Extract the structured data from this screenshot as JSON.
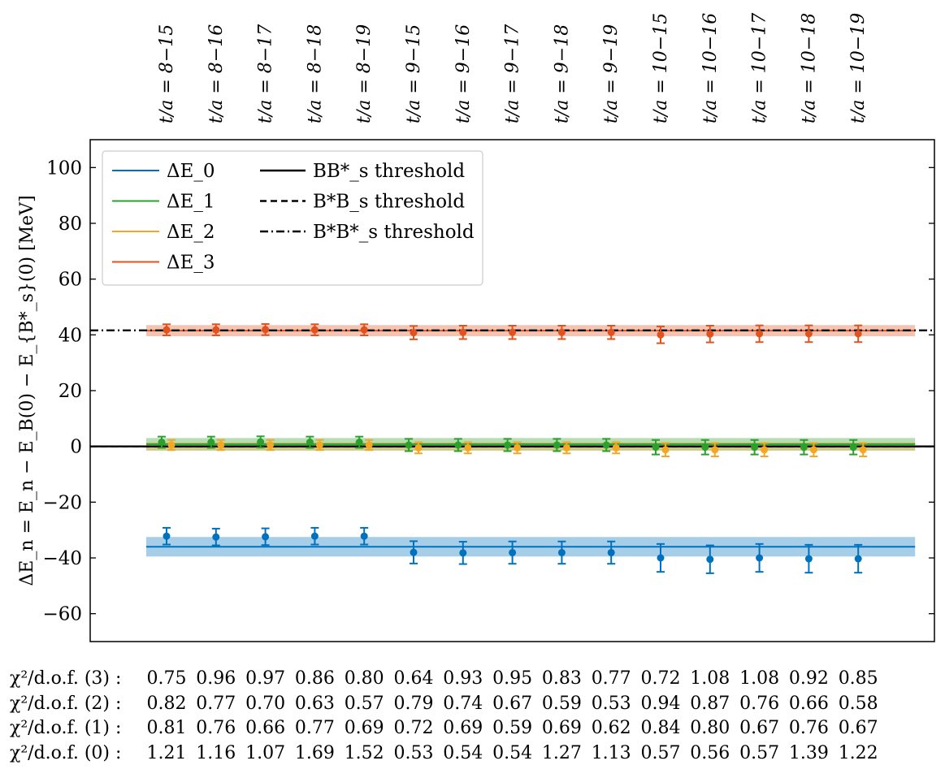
{
  "chart_data": {
    "type": "scatter",
    "ylabel": "ΔE_n = E_n − E_B(0) − E_{B*_s}(0) [MeV]",
    "ylim": [
      -70,
      110
    ],
    "yticks": [
      100,
      80,
      60,
      40,
      20,
      0,
      -20,
      -40,
      -60
    ],
    "ytick_labels": [
      "100",
      "80",
      "60",
      "40",
      "20",
      "0",
      "−20",
      "−40",
      "−60"
    ],
    "categories": [
      "t/a = 8−15",
      "t/a = 8−16",
      "t/a = 8−17",
      "t/a = 8−18",
      "t/a = 8−19",
      "t/a = 9−15",
      "t/a = 9−16",
      "t/a = 9−17",
      "t/a = 9−18",
      "t/a = 9−19",
      "t/a = 10−15",
      "t/a = 10−16",
      "t/a = 10−17",
      "t/a = 10−18",
      "t/a = 10−19"
    ],
    "legend_position": "top-left",
    "series": [
      {
        "name": "ΔE_0",
        "color": "#0072bd",
        "values": [
          -32.2,
          -32.5,
          -32.4,
          -32.2,
          -32.2,
          -38.0,
          -38.2,
          -38.1,
          -38.1,
          -38.1,
          -40.0,
          -40.5,
          -40.0,
          -40.3,
          -40.3
        ],
        "errors": [
          3.0,
          3.0,
          3.0,
          3.0,
          3.0,
          4.0,
          4.0,
          4.0,
          4.0,
          4.0,
          5.0,
          5.0,
          5.0,
          5.0,
          5.0
        ],
        "fit": -36.0,
        "band": [
          -39.5,
          -32.5
        ]
      },
      {
        "name": "ΔE_1",
        "color": "#2ca02c",
        "values": [
          1.5,
          1.5,
          1.6,
          1.5,
          1.5,
          0.5,
          0.5,
          0.5,
          0.5,
          0.5,
          -0.3,
          -0.3,
          -0.3,
          -0.3,
          -0.3
        ],
        "errors": [
          2.0,
          2.0,
          2.0,
          2.0,
          2.0,
          2.2,
          2.2,
          2.2,
          2.2,
          2.2,
          2.6,
          2.6,
          2.6,
          2.6,
          2.6
        ],
        "fit": 0.8,
        "band": [
          -1.5,
          3.0
        ]
      },
      {
        "name": "ΔE_2",
        "color": "#f5a623",
        "values": [
          0.5,
          0.5,
          0.5,
          0.5,
          0.5,
          -0.5,
          -0.5,
          -0.5,
          -0.5,
          -0.5,
          -1.2,
          -1.2,
          -1.2,
          -1.2,
          -1.2
        ],
        "errors": [
          1.8,
          1.8,
          1.8,
          1.8,
          1.8,
          2.0,
          2.0,
          2.0,
          2.0,
          2.0,
          2.4,
          2.4,
          2.4,
          2.4,
          2.4
        ],
        "fit": 0.0,
        "band": [
          -1.5,
          1.5
        ]
      },
      {
        "name": "ΔE_3",
        "color": "#e0531f",
        "values": [
          41.8,
          41.8,
          41.9,
          41.8,
          41.8,
          40.8,
          40.9,
          40.9,
          40.9,
          40.9,
          40.0,
          40.3,
          40.4,
          40.4,
          40.4
        ],
        "errors": [
          2.0,
          2.0,
          2.0,
          2.0,
          2.0,
          2.4,
          2.4,
          2.4,
          2.4,
          2.4,
          3.0,
          3.0,
          3.0,
          3.0,
          3.0
        ],
        "fit": 41.5,
        "band": [
          39.5,
          43.5
        ]
      }
    ],
    "thresholds": [
      {
        "name": "BB*_s threshold",
        "style": "solid",
        "value": 0.0
      },
      {
        "name": "B*B_s threshold",
        "style": "dashed",
        "value": 0.0
      },
      {
        "name": "B*B*_s threshold",
        "style": "dashdot",
        "value": 41.6
      }
    ],
    "chi2_table": {
      "rows": [
        {
          "label": "χ²/d.o.f. (3) :",
          "values": [
            "0.75",
            "0.96",
            "0.97",
            "0.86",
            "0.80",
            "0.64",
            "0.93",
            "0.95",
            "0.83",
            "0.77",
            "0.72",
            "1.08",
            "1.08",
            "0.92",
            "0.85"
          ]
        },
        {
          "label": "χ²/d.o.f. (2) :",
          "values": [
            "0.82",
            "0.77",
            "0.70",
            "0.63",
            "0.57",
            "0.79",
            "0.74",
            "0.67",
            "0.59",
            "0.53",
            "0.94",
            "0.87",
            "0.76",
            "0.66",
            "0.58"
          ]
        },
        {
          "label": "χ²/d.o.f. (1) :",
          "values": [
            "0.81",
            "0.76",
            "0.66",
            "0.77",
            "0.69",
            "0.72",
            "0.69",
            "0.59",
            "0.69",
            "0.62",
            "0.84",
            "0.80",
            "0.67",
            "0.76",
            "0.67"
          ]
        },
        {
          "label": "χ²/d.o.f. (0) :",
          "values": [
            "1.21",
            "1.16",
            "1.07",
            "1.69",
            "1.52",
            "0.53",
            "0.54",
            "0.54",
            "1.27",
            "1.13",
            "0.57",
            "0.56",
            "0.57",
            "1.39",
            "1.22"
          ]
        }
      ]
    }
  }
}
